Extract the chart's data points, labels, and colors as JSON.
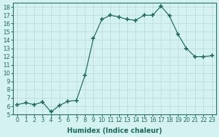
{
  "x": [
    0,
    1,
    2,
    3,
    4,
    5,
    6,
    7,
    8,
    9,
    10,
    11,
    12,
    13,
    14,
    15,
    16,
    17,
    18,
    19,
    20,
    21,
    22,
    23
  ],
  "y": [
    6.2,
    6.4,
    6.2,
    6.5,
    5.3,
    6.1,
    6.6,
    6.7,
    9.7,
    14.2,
    16.5,
    17.0,
    16.8,
    16.5,
    16.4,
    17.0,
    17.0,
    18.1,
    16.9,
    14.7,
    13.0,
    12.0,
    12.0,
    12.1
  ],
  "line_color": "#1a6b5e",
  "marker": "+",
  "marker_size": 4,
  "bg_color": "#d4f2f0",
  "grid_color": "#b8d8d4",
  "xlabel": "Humidex (Indice chaleur)",
  "xlim": [
    -0.5,
    23.5
  ],
  "ylim": [
    5,
    18.5
  ],
  "yticks": [
    5,
    6,
    7,
    8,
    9,
    10,
    11,
    12,
    13,
    14,
    15,
    16,
    17,
    18
  ],
  "xticks": [
    0,
    1,
    2,
    3,
    4,
    5,
    6,
    7,
    8,
    9,
    10,
    11,
    12,
    13,
    14,
    15,
    16,
    17,
    18,
    19,
    20,
    21,
    22,
    23
  ],
  "xtick_labels": [
    "0",
    "1",
    "2",
    "3",
    "4",
    "5",
    "6",
    "7",
    "8",
    "9",
    "10",
    "11",
    "12",
    "13",
    "14",
    "15",
    "16",
    "17",
    "18",
    "19",
    "20",
    "21",
    "22",
    "23"
  ],
  "font_size": 6,
  "axis_color": "#1a6b5e",
  "xlabel_fontsize": 7,
  "xlabel_bold": true
}
